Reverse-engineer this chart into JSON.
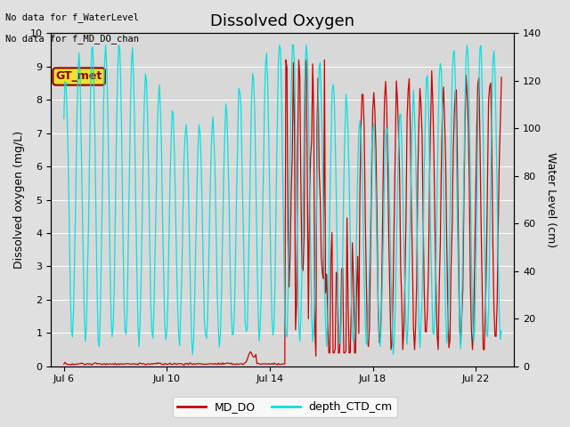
{
  "title": "Dissolved Oxygen",
  "ylabel_left": "Dissolved oxygen (mg/L)",
  "ylabel_right": "Water Level (cm)",
  "ylim_left": [
    0,
    10.0
  ],
  "ylim_right": [
    0,
    140
  ],
  "yticks_left": [
    0.0,
    1.0,
    2.0,
    3.0,
    4.0,
    5.0,
    6.0,
    7.0,
    8.0,
    9.0,
    10.0
  ],
  "yticks_right": [
    0,
    20,
    40,
    60,
    80,
    100,
    120,
    140
  ],
  "xtick_positions": [
    6,
    10,
    14,
    18,
    22
  ],
  "xtick_labels": [
    "Jul 6",
    "Jul 10",
    "Jul 14",
    "Jul 18",
    "Jul 22"
  ],
  "xlim": [
    5.5,
    23.5
  ],
  "text_lines": [
    "No data for f_WaterLevel",
    "No data for f_MD_DO_chan"
  ],
  "annotation": "GT_met",
  "fig_bg_color": "#e0e0e0",
  "plot_bg_color": "#d8d8d8",
  "grid_color": "#ffffff",
  "line_md_do_color": "#cc0000",
  "line_ctd_color": "#00e0e0",
  "legend_labels": [
    "MD_DO",
    "depth_CTD_cm"
  ],
  "title_fontsize": 13,
  "label_fontsize": 9,
  "tick_fontsize": 8
}
